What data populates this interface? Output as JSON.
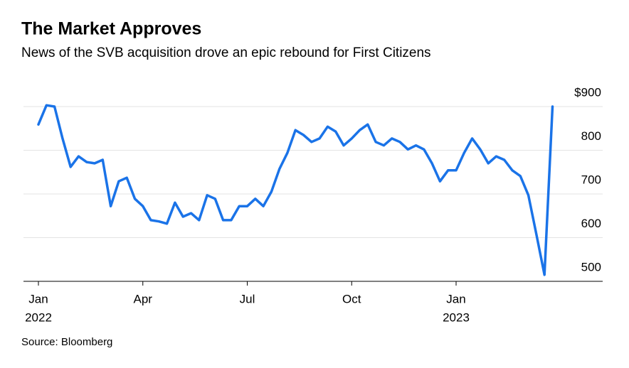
{
  "chart_data": {
    "type": "line",
    "title": "The Market Approves",
    "subtitle": "News of the SVB acquisition drove an epic rebound for First Citizens",
    "source": "Source: Bloomberg",
    "categories": [
      "Jan",
      null,
      null,
      null,
      null,
      null,
      null,
      null,
      null,
      null,
      null,
      null,
      null,
      "Apr",
      null,
      null,
      null,
      null,
      null,
      null,
      null,
      null,
      null,
      null,
      null,
      null,
      "Jul",
      null,
      null,
      null,
      null,
      null,
      null,
      null,
      null,
      null,
      null,
      null,
      null,
      "Oct",
      null,
      null,
      null,
      null,
      null,
      null,
      null,
      null,
      null,
      null,
      null,
      null,
      "Jan",
      null,
      null,
      null,
      null,
      null,
      null,
      null,
      null,
      null,
      null,
      null,
      null
    ],
    "years": [
      "2022",
      null,
      null,
      null,
      null,
      null,
      null,
      null,
      null,
      null,
      null,
      null,
      null,
      null,
      null,
      null,
      null,
      null,
      null,
      null,
      null,
      null,
      null,
      null,
      null,
      null,
      null,
      null,
      null,
      null,
      null,
      null,
      null,
      null,
      null,
      null,
      null,
      null,
      null,
      null,
      null,
      null,
      null,
      null,
      null,
      null,
      null,
      null,
      null,
      null,
      null,
      null,
      "2023",
      null,
      null,
      null,
      null,
      null,
      null,
      null,
      null,
      null,
      null,
      null,
      null
    ],
    "series": [
      {
        "name": "First Citizens",
        "color": "#1a73e8",
        "values": [
          859,
          903,
          900,
          827,
          762,
          786,
          773,
          770,
          778,
          672,
          729,
          737,
          689,
          672,
          640,
          637,
          632,
          680,
          648,
          656,
          640,
          697,
          689,
          640,
          640,
          672,
          672,
          689,
          672,
          705,
          757,
          794,
          846,
          835,
          819,
          827,
          854,
          843,
          811,
          827,
          846,
          859,
          819,
          811,
          827,
          819,
          802,
          811,
          802,
          770,
          729,
          754,
          754,
          794,
          827,
          802,
          770,
          786,
          778,
          754,
          741,
          697,
          607,
          515,
          900
        ]
      }
    ],
    "ylim": [
      500,
      900
    ],
    "yticks": [
      500,
      600,
      700,
      800,
      {
        "value": 900,
        "label": "$900"
      }
    ],
    "grid": true
  }
}
